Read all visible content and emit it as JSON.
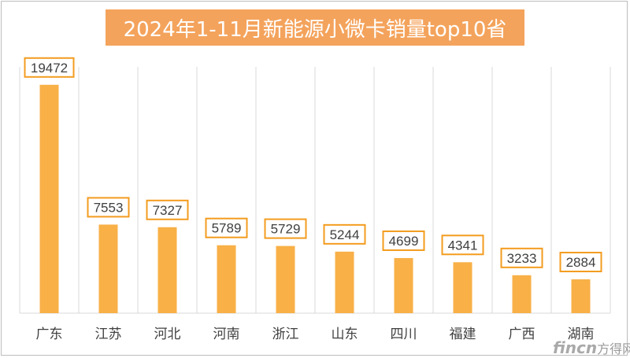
{
  "chart_data": {
    "type": "bar",
    "title": "2024年1-11月新能源小微卡销量top10省",
    "categories": [
      "广东",
      "江苏",
      "河北",
      "河南",
      "浙江",
      "山东",
      "四川",
      "福建",
      "广西",
      "湖南"
    ],
    "values": [
      19472,
      7553,
      7327,
      5789,
      5729,
      5244,
      4699,
      4341,
      3233,
      2884
    ],
    "ylim": [
      0,
      21000
    ],
    "grid": "vertical",
    "legend": "none",
    "colors": {
      "bar": "#f8b047",
      "label_border": "#f39c1f",
      "title_bg": "#f4a35c",
      "grid": "#d9d9d9"
    }
  },
  "watermark": {
    "brand": "fincn",
    "text": "方得网"
  }
}
